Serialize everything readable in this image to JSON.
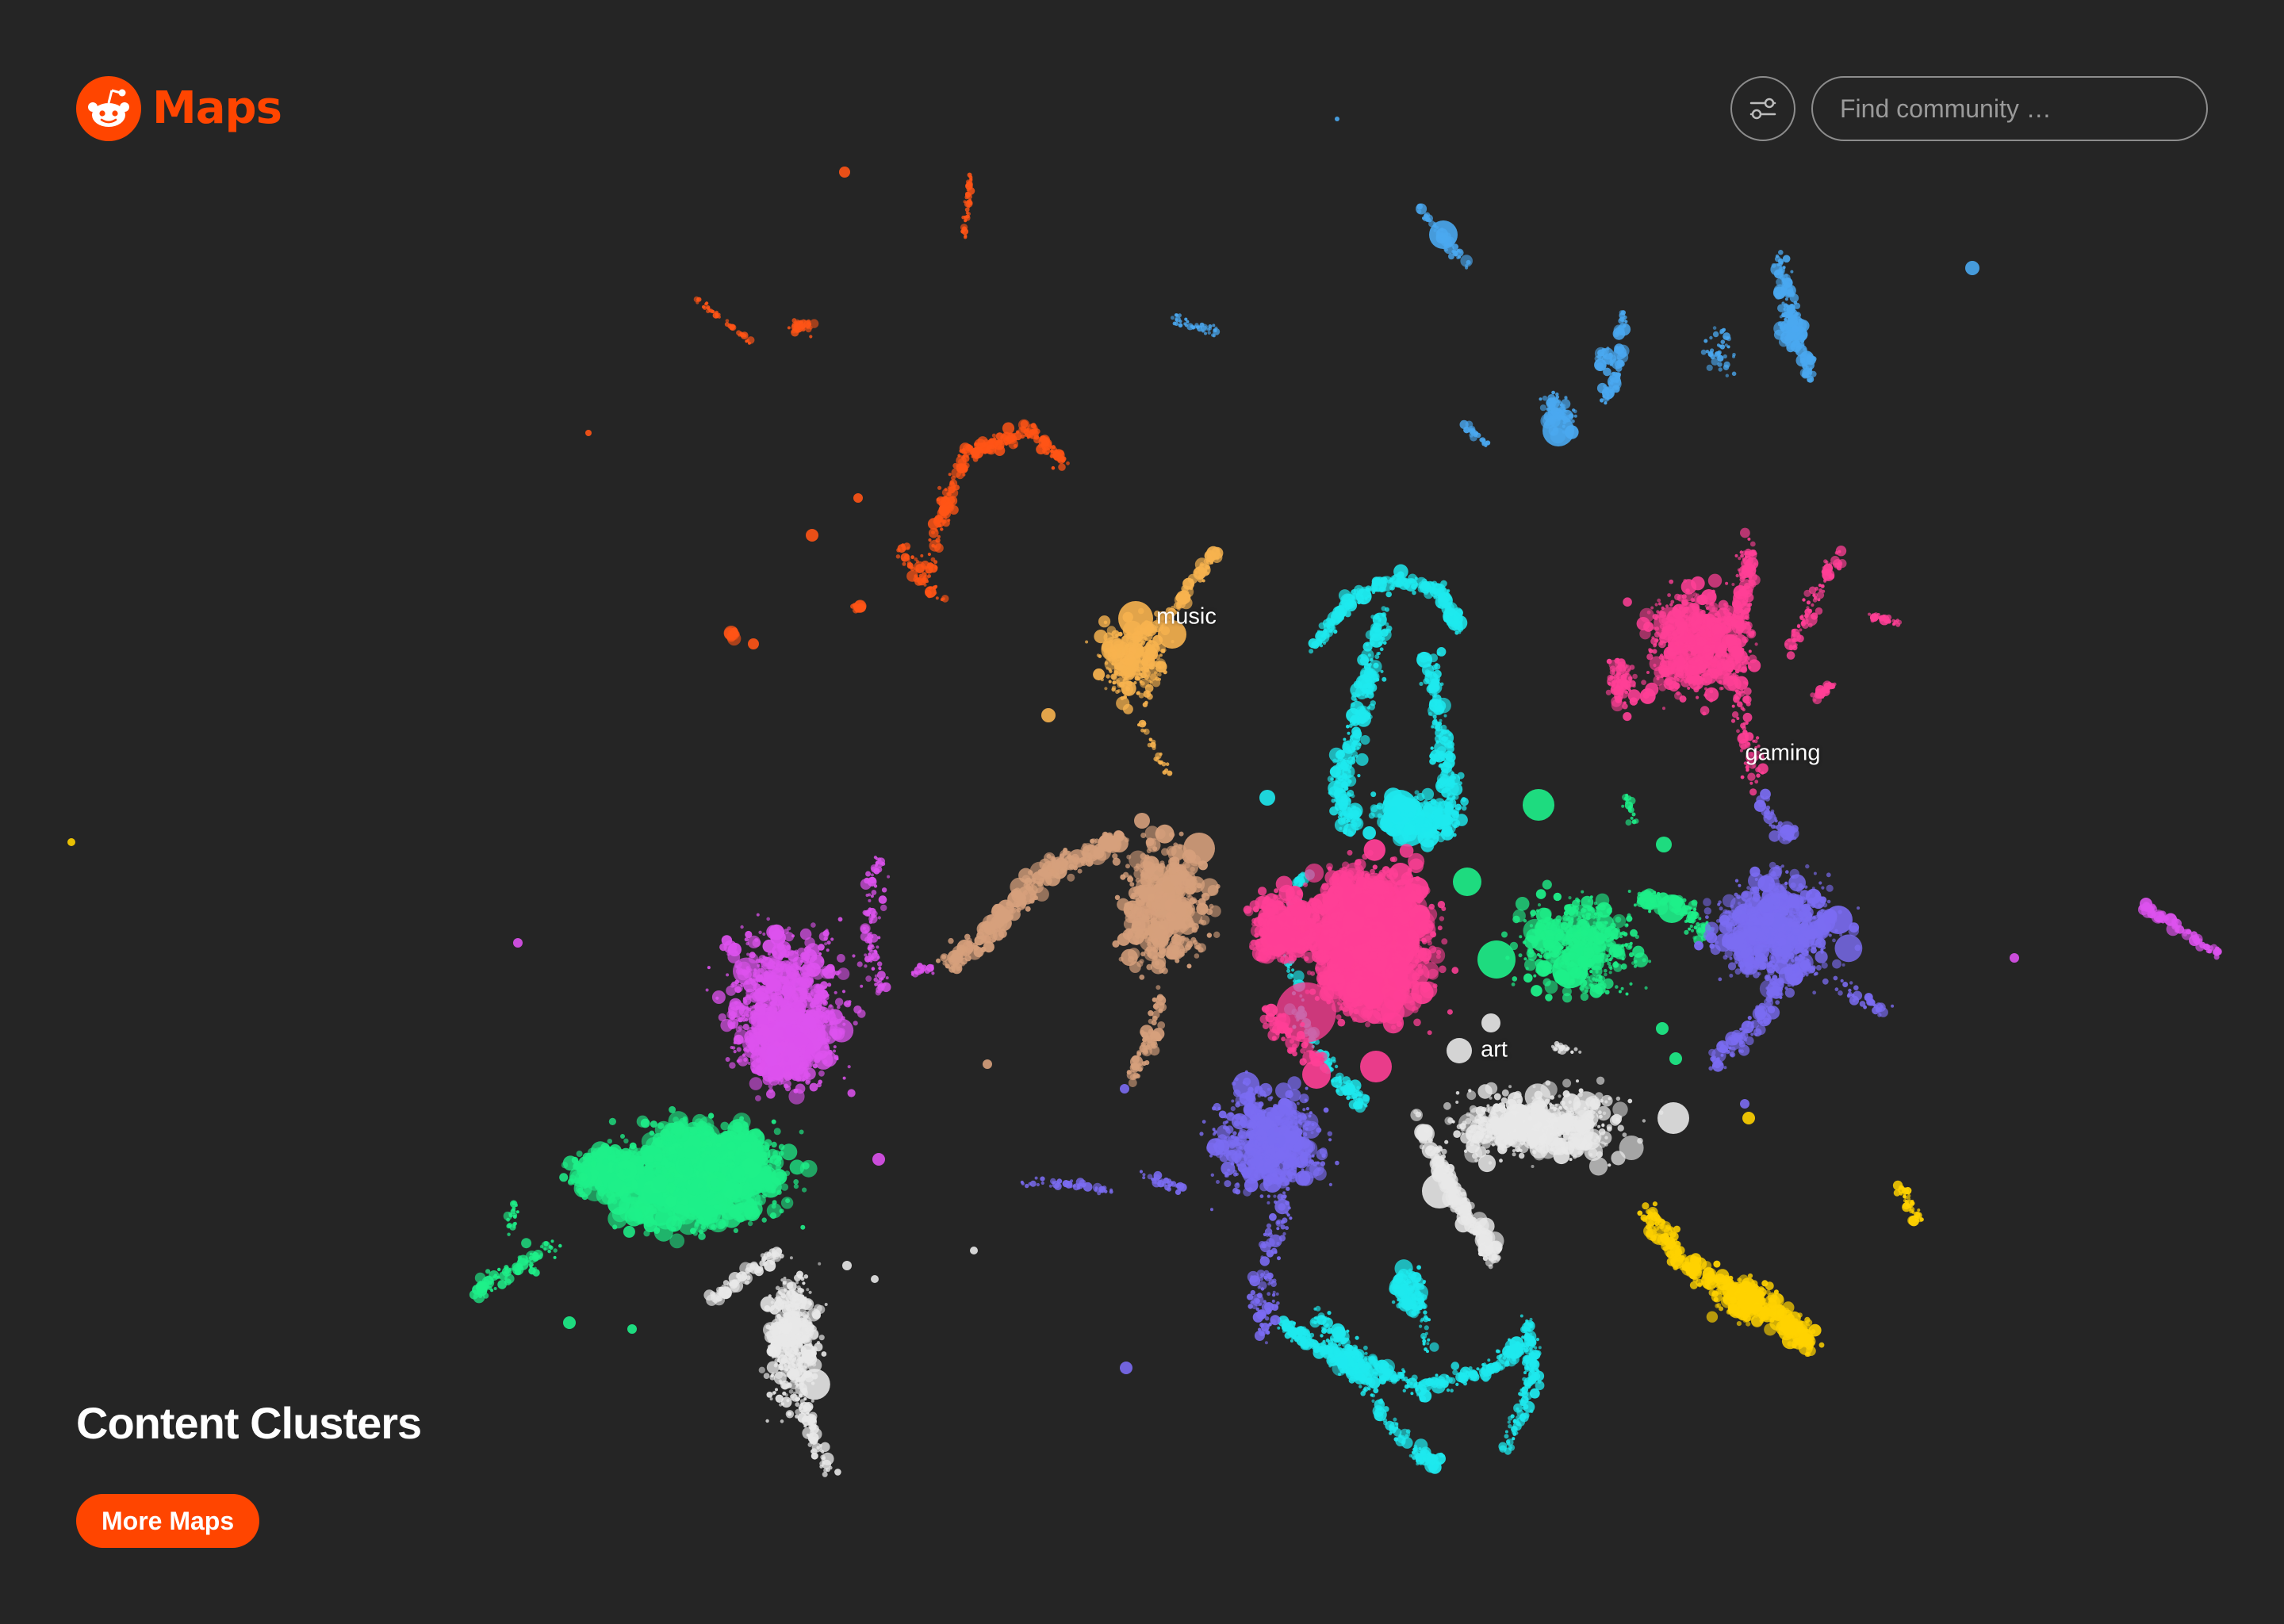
{
  "brand": {
    "name": "Maps",
    "accent_color": "#ff4500"
  },
  "toolbar": {
    "filter_icon": "sliders-icon",
    "search_placeholder": "Find community …"
  },
  "map": {
    "background_color": "#252525",
    "cluster_labels": [
      {
        "text": "music"
      },
      {
        "text": "gaming"
      },
      {
        "text": "art"
      }
    ],
    "cluster_colors": {
      "orange": "#ff5416",
      "blue": "#4aa8f0",
      "yellow_orange": "#f7b34f",
      "cyan": "#1ee9ee",
      "pink": "#ff3f96",
      "magenta": "#dd52ee",
      "tan": "#d6a07c",
      "green": "#1ef089",
      "purple": "#7b6cf2",
      "white": "#e8e8e8",
      "yellow": "#ffd200"
    }
  },
  "footer": {
    "title": "Content Clusters",
    "more_maps_label": "More Maps"
  }
}
